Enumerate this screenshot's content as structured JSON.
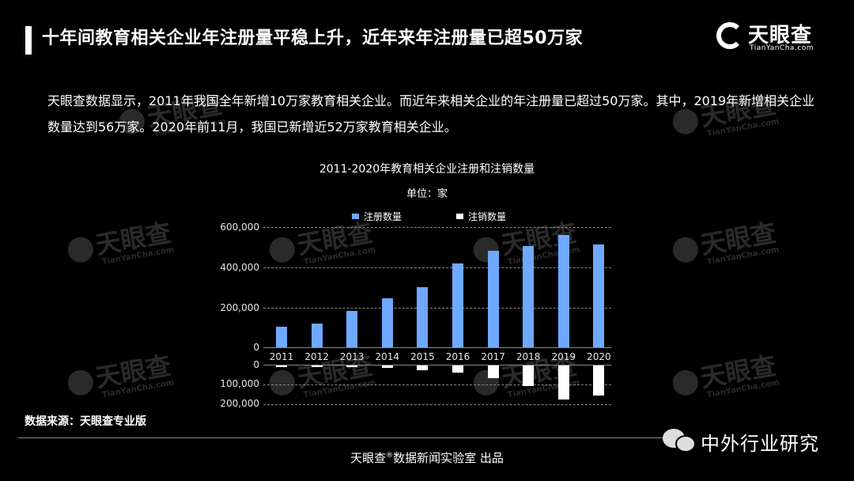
{
  "header": {
    "title": "十年间教育相关企业年注册量平稳上升，近年来年注册量已超50万家",
    "logo_text": "天眼查",
    "logo_sub": "TianYanCha.com"
  },
  "summary": {
    "text": "天眼查数据显示，2011年我国全年新增10万家教育相关企业。而近年来相关企业的年注册量已超过50万家。其中，2019年新增相关企业数量达到56万家。2020年前11月，我国已新增近52万家教育相关企业。"
  },
  "watermark": {
    "text": "天眼查",
    "sub": "TianYanCha.com"
  },
  "chart": {
    "title": "2011-2020年教育相关企业注册和注销数量",
    "unit": "单位：家",
    "legend": [
      {
        "label": "注册数量",
        "color": "#6fa8ff"
      },
      {
        "label": "注销数量",
        "color": "#ffffff"
      }
    ],
    "upper_ticks": [
      "600,000",
      "400,000",
      "200,000",
      "0"
    ],
    "lower_ticks": [
      "0",
      "100,000",
      "200,000"
    ]
  },
  "chart_data": {
    "type": "bar",
    "title": "2011-2020年教育相关企业注册和注销数量",
    "subtitle": "单位：家",
    "xlabel": "",
    "ylabel": "",
    "categories": [
      "2011",
      "2012",
      "2013",
      "2014",
      "2015",
      "2016",
      "2017",
      "2018",
      "2019",
      "2020"
    ],
    "series": [
      {
        "name": "注册数量",
        "color": "#6fa8ff",
        "values": [
          103000,
          119000,
          182000,
          245000,
          300000,
          420000,
          483000,
          507000,
          562000,
          515000
        ]
      },
      {
        "name": "注销数量",
        "color": "#ffffff",
        "values": [
          2000,
          2000,
          3000,
          10000,
          22000,
          35000,
          62000,
          102000,
          170000,
          150000
        ]
      }
    ],
    "ylim_upper": [
      0,
      600000
    ],
    "ylim_lower": [
      0,
      200000
    ],
    "grid": true,
    "legend_position": "top"
  },
  "footer": {
    "source": "数据来源：天眼查专业版",
    "credit_brand": "天眼查",
    "credit_reg": "®",
    "credit_rest": "数据新闻实验室 出品",
    "wechat_name": "中外行业研究"
  }
}
